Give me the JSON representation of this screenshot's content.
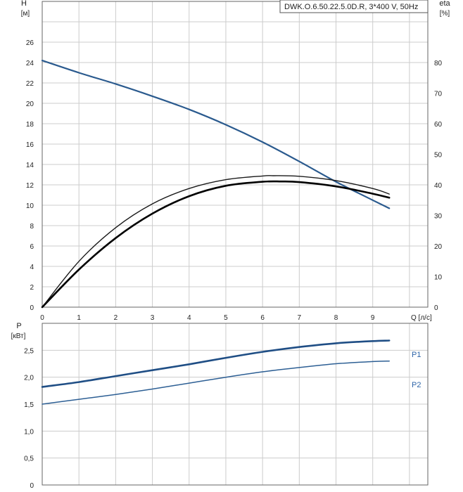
{
  "colors": {
    "head": "#2a5a8e",
    "eta_outer": "#1a1a1a",
    "eta_inner": "#000000",
    "p1": "#1f4e85",
    "p2": "#2d5f94",
    "label_blue": "#2e65a8",
    "grid": "#cccccc",
    "frame": "#666666",
    "text": "#222222"
  },
  "chart_data": [
    {
      "type": "line",
      "title": "DWK.O.6.50.22.5.0D.R, 3*400 V, 50Hz",
      "xlabel": "Q [л/с]",
      "ylabel": [
        "H",
        "[м]"
      ],
      "y2label": [
        "eta",
        "[%]"
      ],
      "xlim": [
        0,
        10.5
      ],
      "ylim": [
        0,
        30
      ],
      "y2lim": [
        0,
        100
      ],
      "xticks": [
        "0",
        "1",
        "2",
        "3",
        "4",
        "5",
        "6",
        "7",
        "8",
        "9"
      ],
      "yticks": [
        "0",
        "2",
        "4",
        "6",
        "8",
        "10",
        "12",
        "14",
        "16",
        "18",
        "20",
        "22",
        "24",
        "26"
      ],
      "y2ticks": [
        "0",
        "10",
        "20",
        "30",
        "40",
        "50",
        "60",
        "70",
        "80"
      ],
      "grid": true,
      "series": [
        {
          "axis": "left",
          "x": [
            0,
            1,
            2,
            3,
            4,
            5,
            6,
            7,
            8,
            9,
            9.45
          ],
          "y": [
            24.2,
            23.0,
            21.9,
            20.7,
            19.4,
            17.9,
            16.2,
            14.3,
            12.3,
            10.5,
            9.7
          ]
        },
        {
          "axis": "right",
          "x": [
            0,
            1,
            2,
            3,
            4,
            5,
            6,
            6.3,
            7,
            8,
            9,
            9.45
          ],
          "y": [
            0,
            15.0,
            26.0,
            33.8,
            38.8,
            41.7,
            42.9,
            43.0,
            42.8,
            41.4,
            38.8,
            37.0
          ]
        },
        {
          "axis": "right",
          "x": [
            0,
            1,
            2,
            3,
            4,
            5,
            6,
            6.5,
            7,
            8,
            9,
            9.45
          ],
          "y": [
            0,
            12.3,
            22.6,
            30.6,
            36.3,
            39.7,
            41.0,
            41.1,
            40.9,
            39.5,
            37.1,
            35.8
          ]
        }
      ]
    },
    {
      "type": "line",
      "xlabel": "",
      "ylabel": [
        "P",
        "[кВт]"
      ],
      "xlim": [
        0,
        10.5
      ],
      "ylim": [
        0,
        3.0
      ],
      "yticks": [
        "0",
        "0,5",
        "1,0",
        "1,5",
        "2,0",
        "2,5"
      ],
      "grid": true,
      "series": [
        {
          "name": "P1",
          "x": [
            0,
            1,
            2,
            3,
            4,
            5,
            6,
            7,
            8,
            9,
            9.45
          ],
          "y": [
            1.82,
            1.91,
            2.02,
            2.13,
            2.24,
            2.36,
            2.47,
            2.56,
            2.63,
            2.67,
            2.68
          ]
        },
        {
          "name": "P2",
          "x": [
            0,
            1,
            2,
            3,
            4,
            5,
            6,
            7,
            8,
            9,
            9.45
          ],
          "y": [
            1.5,
            1.59,
            1.68,
            1.78,
            1.89,
            2.0,
            2.1,
            2.18,
            2.25,
            2.29,
            2.3
          ]
        }
      ]
    }
  ]
}
